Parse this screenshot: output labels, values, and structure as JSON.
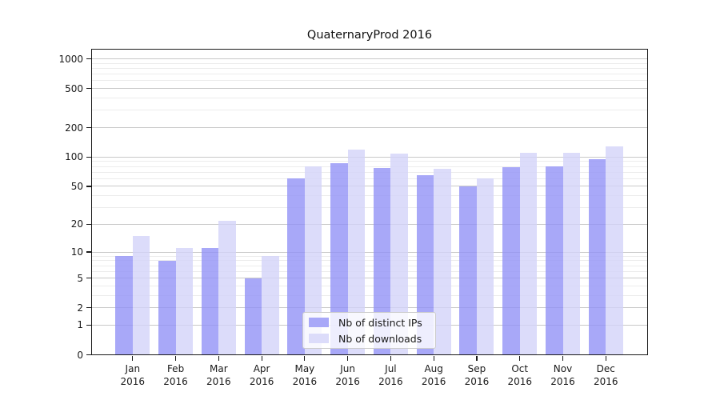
{
  "chart_data": {
    "type": "bar",
    "title": "QuaternaryProd 2016",
    "categories": [
      "Jan",
      "Feb",
      "Mar",
      "Apr",
      "May",
      "Jun",
      "Jul",
      "Aug",
      "Sep",
      "Oct",
      "Nov",
      "Dec"
    ],
    "category_year": "2016",
    "series": [
      {
        "name": "Nb of distinct IPs",
        "color": "#a8a8f8",
        "values": [
          9,
          8,
          11,
          5,
          60,
          87,
          78,
          65,
          50,
          79,
          80,
          96
        ]
      },
      {
        "name": "Nb of downloads",
        "color": "#dcdcfa",
        "values": [
          15,
          11,
          22,
          9,
          80,
          119,
          108,
          76,
          60,
          110,
          110,
          128
        ]
      }
    ],
    "y_ticks_major": [
      0,
      1,
      2,
      5,
      10,
      20,
      50,
      100,
      200,
      500,
      1000
    ],
    "y_ticks_minor": [
      3,
      4,
      6,
      7,
      8,
      9,
      30,
      40,
      60,
      70,
      80,
      90,
      300,
      400,
      600,
      700,
      800,
      900
    ],
    "y_scale": "log10(1+v)",
    "ylim_top_value": 1240,
    "grid": "horizontal",
    "grid_major_color": "#c9c9c9",
    "grid_minor_color": "#ececec",
    "legend_position": "lower center",
    "axis_color": "#1a1a1a",
    "background_color": "#ffffff"
  }
}
